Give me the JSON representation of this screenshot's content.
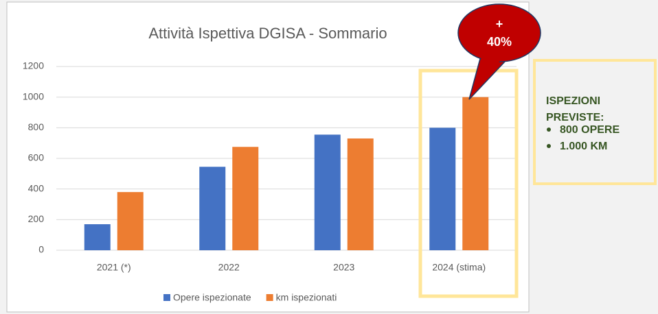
{
  "chart_data": {
    "type": "bar",
    "title": "Attività Ispettiva DGISA - Sommario",
    "categories": [
      "2021 (*)",
      "2022",
      "2023",
      "2024 (stima)"
    ],
    "series": [
      {
        "name": "Opere ispezionate",
        "color": "#4472c4",
        "values": [
          170,
          545,
          755,
          800
        ]
      },
      {
        "name": "km ispezionati",
        "color": "#ed7d31",
        "values": [
          380,
          675,
          730,
          1000
        ]
      }
    ],
    "ylim": [
      0,
      1200
    ],
    "yticks": [
      0,
      200,
      400,
      600,
      800,
      1000,
      1200
    ],
    "grid": true,
    "legend": "bottom",
    "callout": [
      "+",
      "40%"
    ],
    "note": {
      "heading": [
        "ISPEZIONI",
        "PREVISTE:"
      ],
      "items": [
        "800 OPERE",
        "1.000 KM"
      ]
    }
  }
}
